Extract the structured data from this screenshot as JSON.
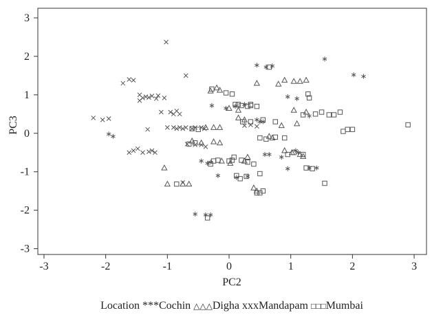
{
  "chart_data": {
    "type": "scatter",
    "title": "",
    "xlabel": "PC2",
    "ylabel": "PC3",
    "xlim": [
      -3.1,
      3.2
    ],
    "ylim": [
      -3.15,
      3.25
    ],
    "xticks": [
      "-3",
      "-2",
      "-1",
      "0",
      "1",
      "2",
      "3"
    ],
    "yticks": [
      "3",
      "2",
      "1",
      "0",
      "-1",
      "-2",
      "-3"
    ],
    "grid": false,
    "legend_position": "bottom",
    "legend_title": "Location",
    "series": [
      {
        "name": "Cochin",
        "marker": "*",
        "legend_symbol": "***",
        "points": [
          [
            -1.88,
            -0.08
          ],
          [
            -1.95,
            -0.02
          ],
          [
            0.45,
            1.77
          ],
          [
            0.6,
            1.72
          ],
          [
            0.7,
            1.75
          ],
          [
            1.55,
            1.93
          ],
          [
            2.02,
            1.52
          ],
          [
            2.18,
            1.48
          ],
          [
            -0.55,
            -2.1
          ],
          [
            -0.38,
            -2.12
          ],
          [
            -0.3,
            -2.12
          ],
          [
            -0.28,
            0.72
          ],
          [
            -0.05,
            0.65
          ],
          [
            0.1,
            0.7
          ],
          [
            0.25,
            0.75
          ],
          [
            0.45,
            0.35
          ],
          [
            0.5,
            0.3
          ],
          [
            0.55,
            0.3
          ],
          [
            0.95,
            0.95
          ],
          [
            1.1,
            0.9
          ],
          [
            1.3,
            0.45
          ],
          [
            0.85,
            -0.62
          ],
          [
            0.95,
            -0.92
          ],
          [
            1.08,
            -0.45
          ],
          [
            1.12,
            -0.5
          ],
          [
            1.3,
            -0.9
          ],
          [
            1.42,
            -0.9
          ],
          [
            0.58,
            -0.55
          ],
          [
            0.65,
            -0.55
          ],
          [
            -0.35,
            -0.78
          ],
          [
            -0.18,
            -1.1
          ],
          [
            0.12,
            -1.15
          ],
          [
            0.3,
            -1.12
          ],
          [
            -0.45,
            -0.72
          ],
          [
            -0.3,
            -0.75
          ]
        ]
      },
      {
        "name": "Digha",
        "marker": "triangle",
        "legend_symbol": "△△△",
        "points": [
          [
            -1.05,
            -0.9
          ],
          [
            -1.0,
            -1.32
          ],
          [
            -0.75,
            -1.32
          ],
          [
            -0.65,
            -1.32
          ],
          [
            -0.3,
            1.1
          ],
          [
            -0.2,
            1.18
          ],
          [
            -0.15,
            1.12
          ],
          [
            0.45,
            1.3
          ],
          [
            0.8,
            1.28
          ],
          [
            0.9,
            1.38
          ],
          [
            1.05,
            1.35
          ],
          [
            1.15,
            1.35
          ],
          [
            1.25,
            1.38
          ],
          [
            0.15,
            0.4
          ],
          [
            0.25,
            0.35
          ],
          [
            -0.25,
            0.15
          ],
          [
            -0.15,
            0.15
          ],
          [
            -0.38,
            0.15
          ],
          [
            -0.45,
            -0.25
          ],
          [
            -0.6,
            -0.2
          ],
          [
            -0.25,
            -0.22
          ],
          [
            -0.15,
            -0.25
          ],
          [
            0.65,
            -0.08
          ],
          [
            0.7,
            -0.12
          ],
          [
            0.85,
            0.2
          ],
          [
            1.1,
            0.25
          ],
          [
            0.25,
            -0.72
          ],
          [
            0.3,
            -0.62
          ],
          [
            -0.12,
            -0.72
          ],
          [
            0.02,
            -0.78
          ],
          [
            0.4,
            -1.42
          ],
          [
            0.45,
            -1.5
          ],
          [
            0.9,
            -0.45
          ],
          [
            1.02,
            -0.5
          ],
          [
            1.15,
            -0.55
          ],
          [
            1.2,
            -0.6
          ],
          [
            1.05,
            0.6
          ],
          [
            1.25,
            0.55
          ],
          [
            0.0,
            0.65
          ],
          [
            0.15,
            0.6
          ]
        ]
      },
      {
        "name": "Mandapam",
        "marker": "x",
        "legend_symbol": "xxx",
        "points": [
          [
            -2.2,
            0.4
          ],
          [
            -2.05,
            0.35
          ],
          [
            -1.95,
            0.38
          ],
          [
            -1.72,
            1.3
          ],
          [
            -1.62,
            1.4
          ],
          [
            -1.55,
            1.38
          ],
          [
            -1.45,
            1.0
          ],
          [
            -1.4,
            0.92
          ],
          [
            -1.35,
            0.95
          ],
          [
            -1.3,
            0.93
          ],
          [
            -1.25,
            0.97
          ],
          [
            -1.18,
            0.9
          ],
          [
            -1.15,
            0.98
          ],
          [
            -1.05,
            0.92
          ],
          [
            -1.02,
            2.37
          ],
          [
            -0.7,
            1.5
          ],
          [
            -1.45,
            0.85
          ],
          [
            -1.32,
            0.1
          ],
          [
            -1.1,
            0.55
          ],
          [
            -0.95,
            0.55
          ],
          [
            -0.9,
            0.5
          ],
          [
            -0.85,
            0.58
          ],
          [
            -0.8,
            0.5
          ],
          [
            -1.0,
            0.15
          ],
          [
            -0.9,
            0.15
          ],
          [
            -0.85,
            0.12
          ],
          [
            -0.8,
            0.15
          ],
          [
            -0.75,
            0.12
          ],
          [
            -0.7,
            0.15
          ],
          [
            -0.6,
            0.12
          ],
          [
            -0.55,
            0.15
          ],
          [
            -0.45,
            0.15
          ],
          [
            -0.4,
            0.12
          ],
          [
            -1.62,
            -0.5
          ],
          [
            -1.55,
            -0.45
          ],
          [
            -1.48,
            -0.4
          ],
          [
            -1.4,
            -0.5
          ],
          [
            -1.3,
            -0.48
          ],
          [
            -1.25,
            -0.45
          ],
          [
            -1.2,
            -0.5
          ],
          [
            -0.68,
            -0.28
          ],
          [
            -0.55,
            -0.3
          ],
          [
            -0.45,
            -0.3
          ],
          [
            -0.38,
            -0.35
          ],
          [
            -0.75,
            -1.28
          ],
          [
            0.25,
            0.2
          ],
          [
            0.35,
            0.22
          ],
          [
            0.45,
            0.18
          ]
        ]
      },
      {
        "name": "Mumbai",
        "marker": "square",
        "legend_symbol": "□□□",
        "points": [
          [
            -0.28,
            1.15
          ],
          [
            -0.05,
            1.05
          ],
          [
            0.05,
            1.02
          ],
          [
            0.1,
            0.75
          ],
          [
            0.15,
            0.75
          ],
          [
            0.2,
            0.72
          ],
          [
            0.3,
            0.7
          ],
          [
            0.35,
            0.72
          ],
          [
            0.45,
            0.7
          ],
          [
            0.65,
            1.72
          ],
          [
            0.55,
            0.35
          ],
          [
            -0.65,
            -0.28
          ],
          [
            -0.55,
            -0.25
          ],
          [
            -0.6,
            0.12
          ],
          [
            -0.5,
            0.1
          ],
          [
            0.22,
            0.3
          ],
          [
            0.35,
            0.3
          ],
          [
            0.5,
            -0.12
          ],
          [
            0.6,
            -0.15
          ],
          [
            0.75,
            -0.1
          ],
          [
            0.9,
            -0.12
          ],
          [
            0.2,
            -0.7
          ],
          [
            0.3,
            -0.75
          ],
          [
            0.05,
            -0.7
          ],
          [
            0.0,
            -0.72
          ],
          [
            0.08,
            -0.62
          ],
          [
            -0.25,
            -0.72
          ],
          [
            -0.3,
            -0.8
          ],
          [
            -0.18,
            -0.7
          ],
          [
            0.12,
            -1.1
          ],
          [
            0.18,
            -1.18
          ],
          [
            0.28,
            -1.12
          ],
          [
            0.4,
            -0.8
          ],
          [
            0.5,
            -1.05
          ],
          [
            0.55,
            -1.5
          ],
          [
            0.5,
            -1.55
          ],
          [
            0.45,
            -1.55
          ],
          [
            0.75,
            0.3
          ],
          [
            0.95,
            -0.55
          ],
          [
            1.05,
            -0.5
          ],
          [
            1.2,
            -0.55
          ],
          [
            1.25,
            -0.9
          ],
          [
            1.35,
            -0.92
          ],
          [
            1.28,
            1.02
          ],
          [
            1.3,
            0.92
          ],
          [
            1.5,
            0.55
          ],
          [
            1.62,
            0.48
          ],
          [
            1.7,
            0.48
          ],
          [
            1.8,
            0.55
          ],
          [
            1.85,
            0.05
          ],
          [
            1.92,
            0.1
          ],
          [
            2.0,
            0.1
          ],
          [
            1.55,
            -1.3
          ],
          [
            2.9,
            0.22
          ],
          [
            -0.85,
            -1.32
          ],
          [
            -0.35,
            -2.2
          ],
          [
            1.2,
            0.48
          ],
          [
            1.4,
            0.5
          ],
          [
            0.35,
            0.75
          ]
        ]
      }
    ]
  }
}
